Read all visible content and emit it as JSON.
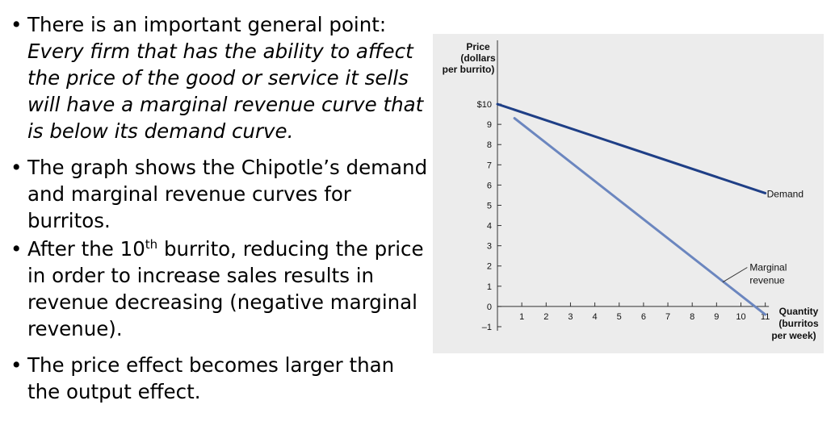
{
  "bullets": {
    "b1_prefix": "There is an important general point: ",
    "b1_italic": "Every firm that has the ability to affect the price of the good or service it sells will have a marginal revenue curve that is below its demand curve.",
    "b2": "The graph shows the Chipotle’s demand and marginal revenue curves for burritos.",
    "b3_before": "After the 10",
    "b3_sup": "th",
    "b3_after": " burrito, reducing the price in order to increase sales results in revenue decreasing (negative marginal revenue).",
    "b4": "The price effect becomes larger than the output effect."
  },
  "chart_data": {
    "type": "line",
    "ylabel_lines": [
      "Price",
      "(dollars",
      "per burrito)"
    ],
    "xlabel_lines": [
      "Quantity",
      "(burritos",
      "per week)"
    ],
    "x_ticks": [
      1,
      2,
      3,
      4,
      5,
      6,
      7,
      8,
      9,
      10,
      11
    ],
    "y_ticks": [
      -1,
      0,
      1,
      2,
      3,
      4,
      5,
      6,
      7,
      8,
      9,
      10
    ],
    "y_tick_labels": [
      "–1",
      "0",
      "1",
      "2",
      "3",
      "4",
      "5",
      "6",
      "7",
      "8",
      "9",
      "$10"
    ],
    "xlim": [
      0,
      13.4
    ],
    "ylim": [
      -1.2,
      10.6
    ],
    "series": [
      {
        "name": "Demand",
        "color": "#1f3f86",
        "points": [
          [
            0,
            10
          ],
          [
            11,
            5.6
          ]
        ]
      },
      {
        "name": "Marginal revenue",
        "label_lines": [
          "Marginal",
          "revenue"
        ],
        "color": "#6b86bf",
        "points": [
          [
            0.7,
            9.3
          ],
          [
            11,
            -0.4
          ]
        ]
      }
    ]
  }
}
